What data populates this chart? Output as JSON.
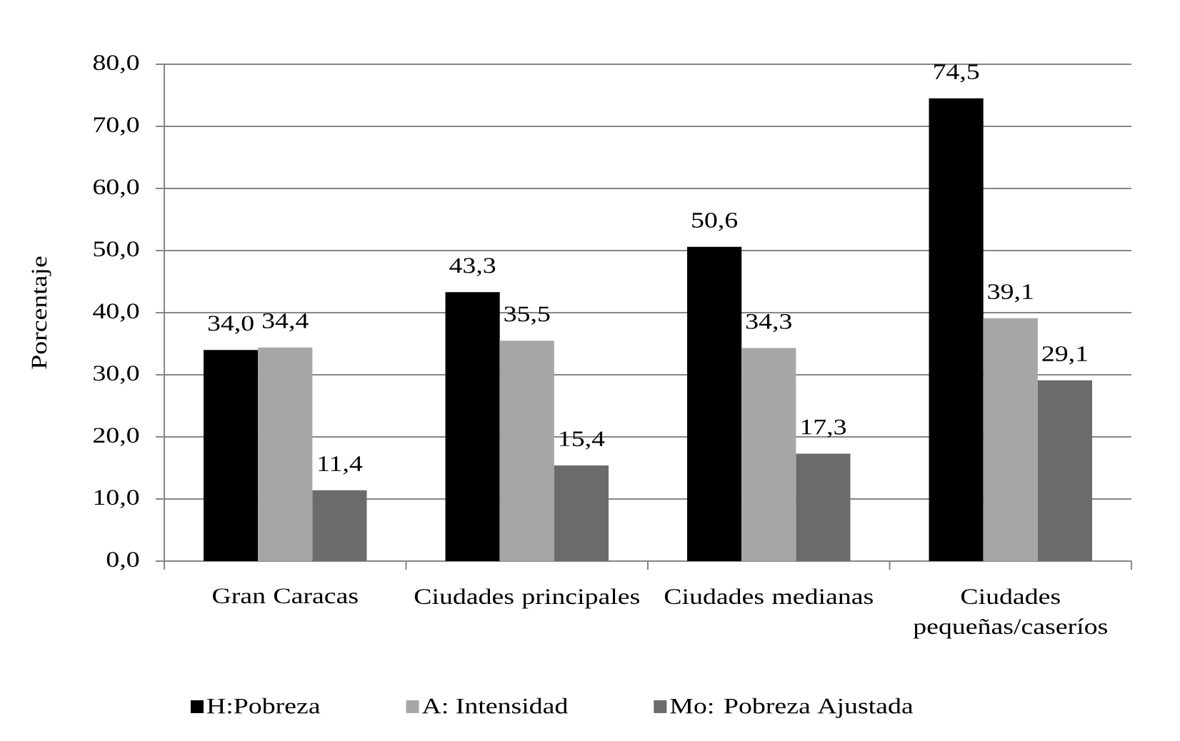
{
  "chart_data": {
    "type": "bar",
    "ylabel": "Porcentaje",
    "categories": [
      "Gran Caracas",
      "Ciudades principales",
      "Ciudades medianas",
      "Ciudades pequeñas/caseríos"
    ],
    "series": [
      {
        "name": "H:Pobreza",
        "color": "#000000",
        "values": [
          34.0,
          43.3,
          50.6,
          74.5
        ],
        "value_labels": [
          "34,0",
          "43,3",
          "50,6",
          "74,5"
        ]
      },
      {
        "name": "A: Intensidad",
        "color": "#a6a6a6",
        "values": [
          34.4,
          35.5,
          34.3,
          39.1
        ],
        "value_labels": [
          "34,4",
          "35,5",
          "34,3",
          "39,1"
        ]
      },
      {
        "name": "Mo: Pobreza Ajustada",
        "color": "#6b6b6b",
        "values": [
          11.4,
          15.4,
          17.3,
          29.1
        ],
        "value_labels": [
          "11,4",
          "15,4",
          "17,3",
          "29,1"
        ]
      }
    ],
    "ylim": [
      0,
      80
    ],
    "yticks": [
      {
        "value": 0,
        "label": "0,0"
      },
      {
        "value": 10,
        "label": "10,0"
      },
      {
        "value": 20,
        "label": "20,0"
      },
      {
        "value": 30,
        "label": "30,0"
      },
      {
        "value": 40,
        "label": "40,0"
      },
      {
        "value": 50,
        "label": "50,0"
      },
      {
        "value": 60,
        "label": "60,0"
      },
      {
        "value": 70,
        "label": "70,0"
      },
      {
        "value": 80,
        "label": "80,0"
      }
    ],
    "grid": "y",
    "legend": "bottom"
  }
}
